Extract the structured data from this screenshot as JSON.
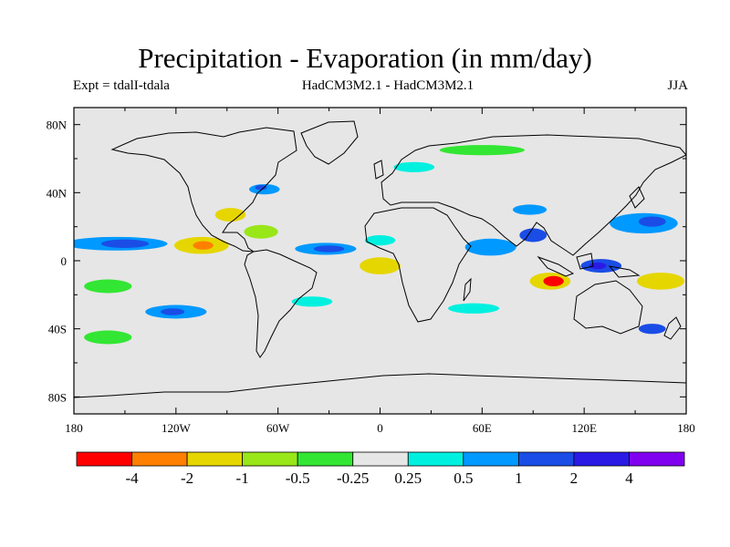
{
  "title": "Precipitation - Evaporation (in mm/day)",
  "subtitle_left": "Expt = tdalI-tdala",
  "subtitle_center": "HadCM3M2.1 - HadCM3M2.1",
  "subtitle_right": "JJA",
  "chart_data": {
    "type": "heatmap",
    "projection": "cylindrical equidistant",
    "xlabel": "",
    "ylabel": "",
    "xlim": [
      -180,
      180
    ],
    "ylim": [
      -90,
      90
    ],
    "x_ticks": [
      {
        "value": -180,
        "label": "180"
      },
      {
        "value": -120,
        "label": "120W"
      },
      {
        "value": -60,
        "label": "60W"
      },
      {
        "value": 0,
        "label": "0"
      },
      {
        "value": 60,
        "label": "60E"
      },
      {
        "value": 120,
        "label": "120E"
      },
      {
        "value": 180,
        "label": "180"
      }
    ],
    "y_ticks": [
      {
        "value": 80,
        "label": "80N"
      },
      {
        "value": 40,
        "label": "40N"
      },
      {
        "value": 0,
        "label": "0"
      },
      {
        "value": -40,
        "label": "40S"
      },
      {
        "value": -80,
        "label": "80S"
      }
    ],
    "background_color": "#e6e6e6",
    "colorbar": {
      "levels": [
        "-4",
        "-2",
        "-1",
        "-0.5",
        "-0.25",
        "0.25",
        "0.5",
        "1",
        "2",
        "4"
      ],
      "colors": [
        "#ff0000",
        "#ff8000",
        "#e6d600",
        "#99e619",
        "#33e633",
        "#e6e6e6",
        "#00f0e0",
        "#0099ff",
        "#1a4de6",
        "#2b1ae6",
        "#8000f0"
      ]
    },
    "regions": [
      {
        "name": "e-pacific-itcz",
        "lon": -155,
        "lat": 10,
        "rx": 30,
        "ry": 4,
        "level_index": 7
      },
      {
        "name": "e-pacific-itcz-core",
        "lon": -150,
        "lat": 10,
        "rx": 14,
        "ry": 2.5,
        "level_index": 8
      },
      {
        "name": "central-america-dry",
        "lon": -105,
        "lat": 9,
        "rx": 16,
        "ry": 5,
        "level_index": 2
      },
      {
        "name": "central-america-dry-core",
        "lon": -104,
        "lat": 9,
        "rx": 6,
        "ry": 2.5,
        "level_index": 1
      },
      {
        "name": "gulf-dry",
        "lon": -88,
        "lat": 27,
        "rx": 9,
        "ry": 4,
        "level_index": 2
      },
      {
        "name": "caribbean-dry",
        "lon": -70,
        "lat": 17,
        "rx": 10,
        "ry": 4,
        "level_index": 3
      },
      {
        "name": "n-atlantic-wet",
        "lon": -68,
        "lat": 42,
        "rx": 9,
        "ry": 3,
        "level_index": 7
      },
      {
        "name": "n-atlantic-wet-core",
        "lon": -70,
        "lat": 43,
        "rx": 3.5,
        "ry": 1.5,
        "level_index": 8
      },
      {
        "name": "atlantic-itcz",
        "lon": -32,
        "lat": 7,
        "rx": 18,
        "ry": 3.5,
        "level_index": 7
      },
      {
        "name": "atlantic-itcz-core",
        "lon": -30,
        "lat": 7,
        "rx": 9,
        "ry": 2,
        "level_index": 8
      },
      {
        "name": "s-atlantic-dry",
        "lon": 0,
        "lat": -3,
        "rx": 12,
        "ry": 5,
        "level_index": 2
      },
      {
        "name": "w-africa-wet",
        "lon": 0,
        "lat": 12,
        "rx": 9,
        "ry": 3,
        "level_index": 6
      },
      {
        "name": "indian-ocean-wet",
        "lon": 65,
        "lat": 8,
        "rx": 15,
        "ry": 5,
        "level_index": 7
      },
      {
        "name": "bay-of-bengal",
        "lon": 90,
        "lat": 15,
        "rx": 8,
        "ry": 4,
        "level_index": 8
      },
      {
        "name": "tibet-wet",
        "lon": 88,
        "lat": 30,
        "rx": 10,
        "ry": 3,
        "level_index": 7
      },
      {
        "name": "w-pacific-wet",
        "lon": 155,
        "lat": 22,
        "rx": 20,
        "ry": 6,
        "level_index": 7
      },
      {
        "name": "w-pacific-wet-core",
        "lon": 160,
        "lat": 23,
        "rx": 8,
        "ry": 3,
        "level_index": 8
      },
      {
        "name": "maritime-continent",
        "lon": 130,
        "lat": -3,
        "rx": 12,
        "ry": 4,
        "level_index": 8
      },
      {
        "name": "maritime-core",
        "lon": 128,
        "lat": -3,
        "rx": 5,
        "ry": 2,
        "level_index": 9
      },
      {
        "name": "s-indian-dry",
        "lon": 100,
        "lat": -12,
        "rx": 12,
        "ry": 5,
        "level_index": 2
      },
      {
        "name": "s-indian-dry-core",
        "lon": 102,
        "lat": -12,
        "rx": 6,
        "ry": 3,
        "level_index": 0
      },
      {
        "name": "spcz-dry",
        "lon": 165,
        "lat": -12,
        "rx": 14,
        "ry": 5,
        "level_index": 2
      },
      {
        "name": "s-pacific-wet",
        "lon": -120,
        "lat": -30,
        "rx": 18,
        "ry": 4,
        "level_index": 7
      },
      {
        "name": "s-pacific-wet-core",
        "lon": -122,
        "lat": -30,
        "rx": 7,
        "ry": 2,
        "level_index": 8
      },
      {
        "name": "s-pacific-green",
        "lon": -160,
        "lat": -15,
        "rx": 14,
        "ry": 4,
        "level_index": 4
      },
      {
        "name": "s-pacific-south",
        "lon": -160,
        "lat": -45,
        "rx": 14,
        "ry": 4,
        "level_index": 4
      },
      {
        "name": "arctic-dry",
        "lon": 60,
        "lat": 65,
        "rx": 25,
        "ry": 3,
        "level_index": 4
      },
      {
        "name": "n-europe-wet",
        "lon": 20,
        "lat": 55,
        "rx": 12,
        "ry": 3,
        "level_index": 6
      },
      {
        "name": "s-atlantic-cyan",
        "lon": -40,
        "lat": -24,
        "rx": 12,
        "ry": 3,
        "level_index": 6
      },
      {
        "name": "s-indian-cyan",
        "lon": 55,
        "lat": -28,
        "rx": 15,
        "ry": 3,
        "level_index": 6
      },
      {
        "name": "tasman",
        "lon": 160,
        "lat": -40,
        "rx": 8,
        "ry": 3,
        "level_index": 8
      }
    ]
  }
}
